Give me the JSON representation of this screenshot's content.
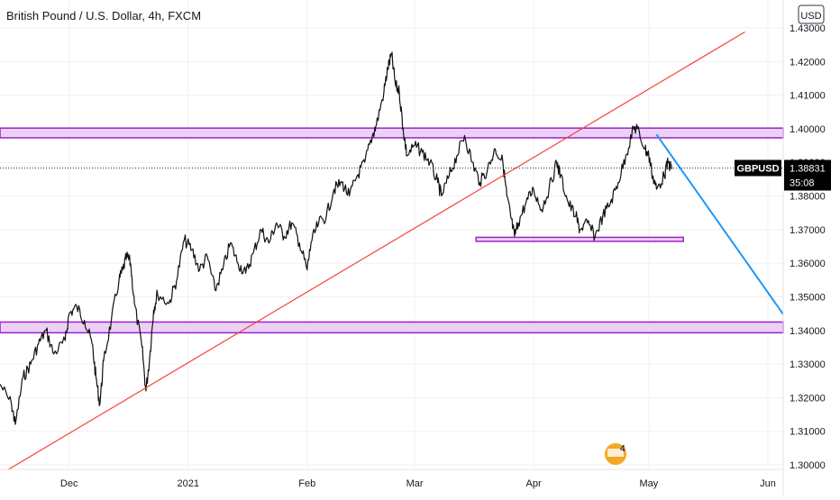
{
  "title": "British Pound / U.S. Dollar, 4h, FXCM",
  "currency_button": "USD",
  "price_tag": {
    "symbol": "GBPUSD",
    "price": "1.38831",
    "countdown": "35:08",
    "value": 1.38831
  },
  "watermark_text": "4",
  "colors": {
    "candles": "#111111",
    "zone_fill": "#ead1f5",
    "zone_border": "#a020c8",
    "trendline": "#f4433c",
    "projection": "#2196f3",
    "price_tag_bg": "#000000",
    "price_dotted": "#333333"
  },
  "chart_data": {
    "type": "line",
    "title": "British Pound / U.S. Dollar, 4h, FXCM",
    "xlabel": "",
    "ylabel": "",
    "ylim": [
      1.3,
      1.43
    ],
    "y_ticks": [
      "1.30000",
      "1.31000",
      "1.32000",
      "1.33000",
      "1.34000",
      "1.35000",
      "1.36000",
      "1.37000",
      "1.38000",
      "1.39000",
      "1.40000",
      "1.41000",
      "1.42000",
      "1.43000"
    ],
    "x_ticks": [
      {
        "label": "Dec",
        "date": "2020-12-01"
      },
      {
        "label": "2021",
        "date": "2021-01-01"
      },
      {
        "label": "Feb",
        "date": "2021-02-01"
      },
      {
        "label": "Mar",
        "date": "2021-03-01"
      },
      {
        "label": "Apr",
        "date": "2021-04-01"
      },
      {
        "label": "May",
        "date": "2021-05-01"
      },
      {
        "label": "Jun",
        "date": "2021-06-01"
      }
    ],
    "xlim": [
      "2020-11-13",
      "2021-06-05"
    ],
    "grid": true,
    "series": [
      {
        "type": "line",
        "points": [
          [
            "2020-11-13",
            1.324
          ],
          [
            "2020-11-16",
            1.318
          ],
          [
            "2020-11-17",
            1.312
          ],
          [
            "2020-11-19",
            1.326
          ],
          [
            "2020-11-21",
            1.33
          ],
          [
            "2020-11-23",
            1.336
          ],
          [
            "2020-11-25",
            1.34
          ],
          [
            "2020-11-27",
            1.333
          ],
          [
            "2020-11-30",
            1.337
          ],
          [
            "2020-12-01",
            1.345
          ],
          [
            "2020-12-03",
            1.347
          ],
          [
            "2020-12-05",
            1.343
          ],
          [
            "2020-12-07",
            1.336
          ],
          [
            "2020-12-08",
            1.326
          ],
          [
            "2020-12-09",
            1.318
          ],
          [
            "2020-12-10",
            1.331
          ],
          [
            "2020-12-12",
            1.343
          ],
          [
            "2020-12-14",
            1.355
          ],
          [
            "2020-12-15",
            1.358
          ],
          [
            "2020-12-16",
            1.362
          ],
          [
            "2020-12-17",
            1.36
          ],
          [
            "2020-12-18",
            1.348
          ],
          [
            "2020-12-20",
            1.335
          ],
          [
            "2020-12-21",
            1.322
          ],
          [
            "2020-12-22",
            1.332
          ],
          [
            "2020-12-23",
            1.346
          ],
          [
            "2020-12-24",
            1.351
          ],
          [
            "2020-12-27",
            1.348
          ],
          [
            "2020-12-29",
            1.355
          ],
          [
            "2020-12-31",
            1.367
          ],
          [
            "2021-01-02",
            1.364
          ],
          [
            "2021-01-04",
            1.358
          ],
          [
            "2021-01-06",
            1.362
          ],
          [
            "2021-01-08",
            1.352
          ],
          [
            "2021-01-10",
            1.358
          ],
          [
            "2021-01-12",
            1.366
          ],
          [
            "2021-01-14",
            1.36
          ],
          [
            "2021-01-16",
            1.357
          ],
          [
            "2021-01-18",
            1.363
          ],
          [
            "2021-01-20",
            1.37
          ],
          [
            "2021-01-22",
            1.366
          ],
          [
            "2021-01-24",
            1.372
          ],
          [
            "2021-01-26",
            1.368
          ],
          [
            "2021-01-28",
            1.372
          ],
          [
            "2021-01-30",
            1.366
          ],
          [
            "2021-02-01",
            1.358
          ],
          [
            "2021-02-02",
            1.366
          ],
          [
            "2021-02-04",
            1.372
          ],
          [
            "2021-02-06",
            1.374
          ],
          [
            "2021-02-08",
            1.382
          ],
          [
            "2021-02-10",
            1.384
          ],
          [
            "2021-02-12",
            1.38
          ],
          [
            "2021-02-14",
            1.386
          ],
          [
            "2021-02-16",
            1.39
          ],
          [
            "2021-02-18",
            1.398
          ],
          [
            "2021-02-19",
            1.401
          ],
          [
            "2021-02-21",
            1.411
          ],
          [
            "2021-02-22",
            1.418
          ],
          [
            "2021-02-23",
            1.422
          ],
          [
            "2021-02-24",
            1.413
          ],
          [
            "2021-02-25",
            1.411
          ],
          [
            "2021-02-26",
            1.4
          ],
          [
            "2021-02-27",
            1.392
          ],
          [
            "2021-03-01",
            1.395
          ],
          [
            "2021-03-03",
            1.393
          ],
          [
            "2021-03-05",
            1.39
          ],
          [
            "2021-03-07",
            1.384
          ],
          [
            "2021-03-08",
            1.38
          ],
          [
            "2021-03-10",
            1.386
          ],
          [
            "2021-03-12",
            1.392
          ],
          [
            "2021-03-14",
            1.398
          ],
          [
            "2021-03-16",
            1.39
          ],
          [
            "2021-03-18",
            1.384
          ],
          [
            "2021-03-20",
            1.388
          ],
          [
            "2021-03-22",
            1.394
          ],
          [
            "2021-03-24",
            1.39
          ],
          [
            "2021-03-25",
            1.38
          ],
          [
            "2021-03-26",
            1.374
          ],
          [
            "2021-03-27",
            1.368
          ],
          [
            "2021-03-28",
            1.372
          ],
          [
            "2021-03-30",
            1.378
          ],
          [
            "2021-04-01",
            1.382
          ],
          [
            "2021-04-03",
            1.376
          ],
          [
            "2021-04-05",
            1.382
          ],
          [
            "2021-04-07",
            1.39
          ],
          [
            "2021-04-08",
            1.386
          ],
          [
            "2021-04-10",
            1.378
          ],
          [
            "2021-04-12",
            1.374
          ],
          [
            "2021-04-13",
            1.37
          ],
          [
            "2021-04-15",
            1.372
          ],
          [
            "2021-04-17",
            1.368
          ],
          [
            "2021-04-19",
            1.374
          ],
          [
            "2021-04-21",
            1.378
          ],
          [
            "2021-04-23",
            1.384
          ],
          [
            "2021-04-25",
            1.392
          ],
          [
            "2021-04-27",
            1.4
          ],
          [
            "2021-04-28",
            1.4
          ],
          [
            "2021-04-30",
            1.394
          ],
          [
            "2021-05-01",
            1.392
          ],
          [
            "2021-05-02",
            1.386
          ],
          [
            "2021-05-03",
            1.382
          ],
          [
            "2021-05-05",
            1.386
          ],
          [
            "2021-05-06",
            1.39
          ],
          [
            "2021-05-07",
            1.388
          ]
        ]
      }
    ],
    "annotations": {
      "resistance_zone": {
        "from": 1.3973,
        "to": 1.4002,
        "x_start": "2020-11-13",
        "x_end": "2021-06-05"
      },
      "support_zone": {
        "from": 1.3393,
        "to": 1.3425,
        "x_start": "2020-11-13",
        "x_end": "2021-06-05"
      },
      "small_zone": {
        "from": 1.3665,
        "to": 1.3677,
        "x_start": "2021-03-17",
        "x_end": "2021-05-10"
      },
      "trendline": {
        "from": [
          "2020-11-15",
          1.2985
        ],
        "to": [
          "2021-05-26",
          1.4288
        ]
      },
      "projection": {
        "from": [
          "2021-05-03",
          1.3983
        ],
        "to": [
          "2021-06-05",
          1.3448
        ]
      },
      "current_price": 1.38831
    }
  }
}
